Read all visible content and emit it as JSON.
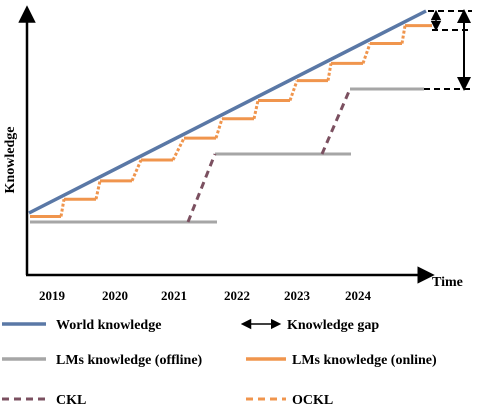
{
  "axes": {
    "x_title": "Time",
    "y_title": "Knowledge",
    "years": [
      "2019",
      "2020",
      "2021",
      "2022",
      "2023",
      "2024"
    ]
  },
  "colors": {
    "world": "#5a78a6",
    "offline": "#a6a6a6",
    "online": "#f0954d",
    "ckl": "#7b5060",
    "ockl": "#f0954d",
    "axis": "#000000"
  },
  "legend": {
    "world_knowledge": "World knowledge",
    "knowledge_gap": "Knowledge gap",
    "lms_offline": "LMs knowledge (offline)",
    "lms_online": "LMs knowledge (online)",
    "ckl": "CKL",
    "ockl": "OCKL"
  }
}
